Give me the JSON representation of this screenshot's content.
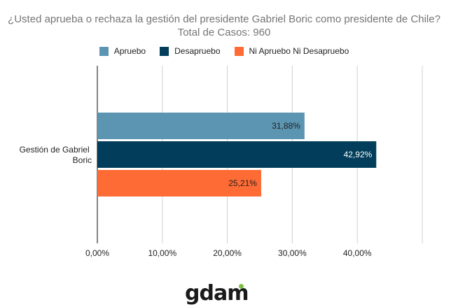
{
  "chart_data": {
    "type": "bar",
    "orientation": "horizontal",
    "title": "¿Usted aprueba o rechaza la gestión del presidente Gabriel Boric como presidente de Chile? Total de Casos: 960",
    "categories": [
      "Gestión de Gabriel Boric"
    ],
    "series": [
      {
        "name": "Apruebo",
        "values": [
          31.88
        ],
        "label": "31,88%",
        "color": "#5b95b2"
      },
      {
        "name": "Desapruebo",
        "values": [
          42.92
        ],
        "label": "42,92%",
        "color": "#023e5b"
      },
      {
        "name": "Ni Apruebo Ni Desapruebo",
        "values": [
          25.21
        ],
        "label": "25,21%",
        "color": "#ff6b35"
      }
    ],
    "xlim": [
      0,
      50
    ],
    "xticks": [
      0,
      10,
      20,
      30,
      40,
      50
    ],
    "xtick_labels": [
      "0,00%",
      "10,00%",
      "20,00%",
      "30,00%",
      "40,00%",
      ""
    ],
    "grid": true,
    "legend_position": "top"
  },
  "category_label_lines": [
    "Gestión de Gabriel",
    "Boric"
  ],
  "logo_text": "gdam",
  "colors": {
    "grid": "#d0d0d0",
    "axis": "#333333",
    "label_dark": "#222222",
    "label_light": "#ffffff"
  }
}
